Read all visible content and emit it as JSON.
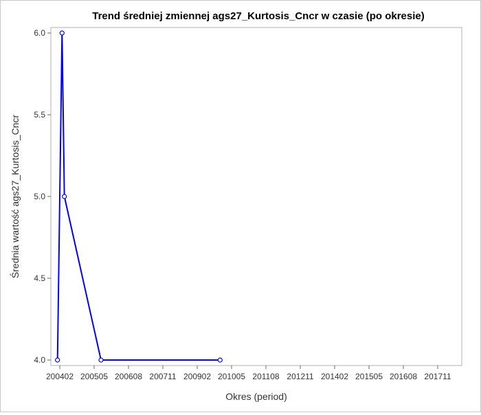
{
  "chart_data": {
    "type": "line",
    "title": "Trend średniej zmiennej ags27_Kurtosis_Cncr w czasie (po okresie)",
    "xlabel": "Okres (period)",
    "ylabel": "Średnia wartość ags27_Kurtosis_Cncr",
    "x_ticks": [
      "200402",
      "200505",
      "200608",
      "200711",
      "200902",
      "201005",
      "201108",
      "201211",
      "201402",
      "201505",
      "201608",
      "201711"
    ],
    "y_ticks": [
      "4.0",
      "4.5",
      "5.0",
      "5.5",
      "6.0"
    ],
    "ylim": [
      4.0,
      6.0
    ],
    "grid": false,
    "legend": "none",
    "series": [
      {
        "color": "#0000ff",
        "marker": "open-circle",
        "x": [
          "2004-01",
          "2004-03",
          "2004-04",
          "2005-08",
          "2009-12"
        ],
        "values": [
          4.0,
          6.0,
          5.0,
          4.0,
          4.0
        ]
      }
    ]
  }
}
